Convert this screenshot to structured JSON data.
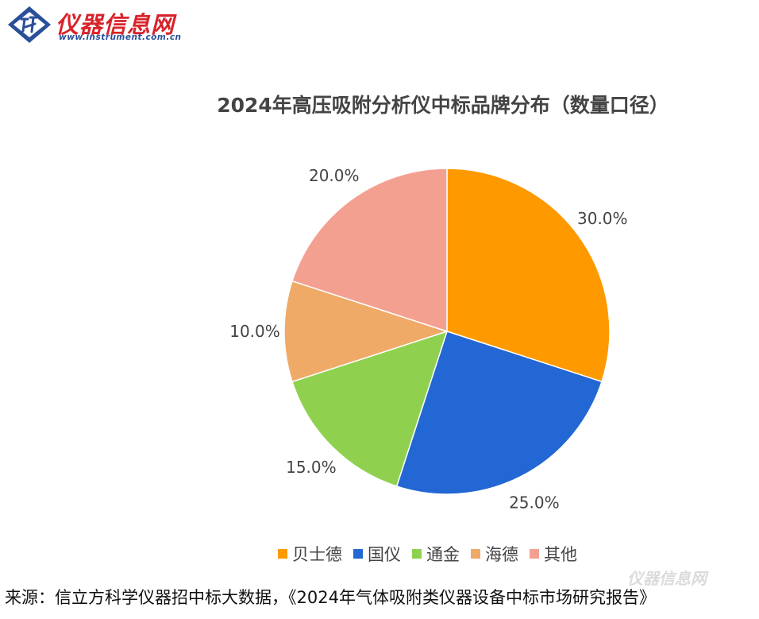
{
  "logo": {
    "brand_text": "仪器信息网",
    "url_text": "www.instrument.com.cn",
    "colors": {
      "brand": "#d8232a",
      "mark": "#2a4f9a"
    }
  },
  "chart_data": {
    "type": "pie",
    "title": "2024年高压吸附分析仪中标品牌分布（数量口径）",
    "categories": [
      "贝士德",
      "国仪",
      "通金",
      "海德",
      "其他"
    ],
    "values": [
      30.0,
      25.0,
      15.0,
      10.0,
      20.0
    ],
    "value_labels": [
      "30.0%",
      "25.0%",
      "15.0%",
      "10.0%",
      "20.0%"
    ],
    "colors": [
      "#ff9900",
      "#2267d3",
      "#8fd14f",
      "#eeaa66",
      "#f4a090"
    ],
    "start": "top, clockwise",
    "legend_position": "bottom"
  },
  "source": "来源：信立方科学仪器招中标大数据，《2024年气体吸附类仪器设备中标市场研究报告》",
  "watermark": "仪器信息网"
}
